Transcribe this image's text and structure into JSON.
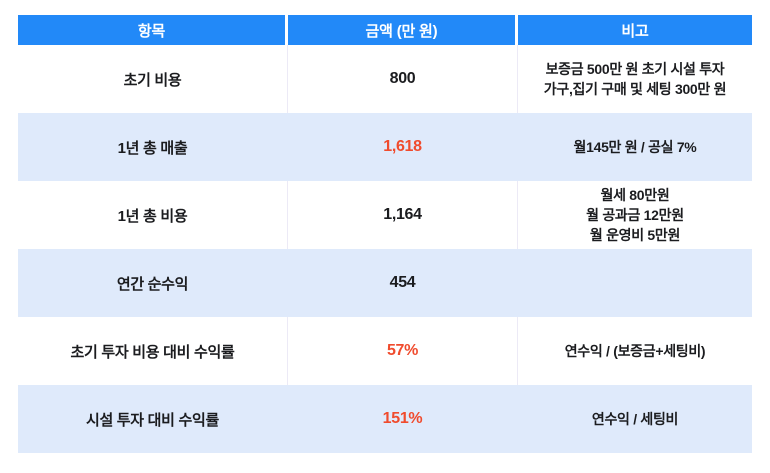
{
  "colors": {
    "header_bg": "#2289F8",
    "header_text": "#FFFFFF",
    "row_bg": "#FFFFFF",
    "row_alt_bg": "#DFEAFB",
    "accent_red": "#F04B2D",
    "body_text": "#1B1C1F",
    "divider": "#ECEAF6"
  },
  "chart_data": {
    "type": "table",
    "columns": [
      "항목",
      "금액 (만 원)",
      "비고"
    ],
    "rows": [
      {
        "item": "초기 비용",
        "amount": "800",
        "amount_style": "dark",
        "note": "보증금 500만 원 초기 시설 투자\n가구,집기 구매 및 세팅 300만 원"
      },
      {
        "item": "1년 총 매출",
        "amount": "1,618",
        "amount_style": "red",
        "note": "월145만 원 / 공실 7%"
      },
      {
        "item": "1년 총 비용",
        "amount": "1,164",
        "amount_style": "dark",
        "note": "월세 80만원\n월 공과금 12만원\n월 운영비 5만원"
      },
      {
        "item": "연간 순수익",
        "amount": "454",
        "amount_style": "dark",
        "note": ""
      },
      {
        "item": "초기 투자 비용 대비 수익률",
        "amount": "57%",
        "amount_style": "red",
        "note": "연수익 / (보증금+세팅비)"
      },
      {
        "item": "시설 투자 대비 수익률",
        "amount": "151%",
        "amount_style": "red",
        "note": "연수익 / 세팅비"
      }
    ]
  }
}
